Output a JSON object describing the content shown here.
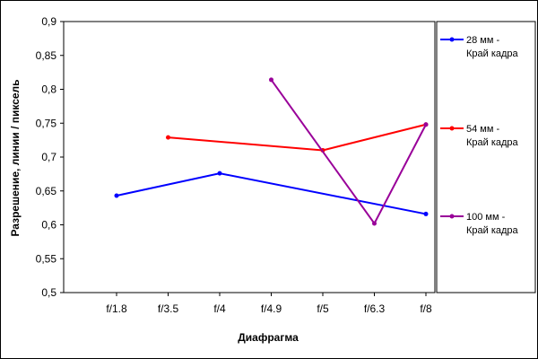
{
  "chart_data": {
    "type": "line",
    "title": "",
    "xlabel": "Диафрагма",
    "ylabel": "Разрешение, линии / пиксель",
    "categories": [
      "f/1.8",
      "f/3.5",
      "f/4",
      "f/4.9",
      "f/5",
      "f/6.3",
      "f/8"
    ],
    "ylim": [
      0.5,
      0.9
    ],
    "yticks": [
      "0,5",
      "0,55",
      "0,6",
      "0,65",
      "0,7",
      "0,75",
      "0,8",
      "0,85",
      "0,9"
    ],
    "ytick_values": [
      0.5,
      0.55,
      0.6,
      0.65,
      0.7,
      0.75,
      0.8,
      0.85,
      0.9
    ],
    "grid": false,
    "legend_position": "right",
    "series": [
      {
        "name": "28 мм - Край кадра",
        "name_lines": [
          "28 мм -",
          "Край кадра"
        ],
        "color": "#0000ff",
        "values": [
          0.643,
          null,
          0.676,
          null,
          null,
          null,
          0.616
        ]
      },
      {
        "name": "54 мм - Край кадра",
        "name_lines": [
          "54 мм -",
          "Край кадра"
        ],
        "color": "#ff0000",
        "values": [
          null,
          0.729,
          null,
          null,
          0.71,
          null,
          0.748
        ]
      },
      {
        "name": "100 мм - Край кадра",
        "name_lines": [
          "100 мм -",
          "Край кадра"
        ],
        "color": "#990099",
        "values": [
          null,
          null,
          null,
          0.814,
          null,
          0.602,
          0.748
        ]
      }
    ]
  }
}
